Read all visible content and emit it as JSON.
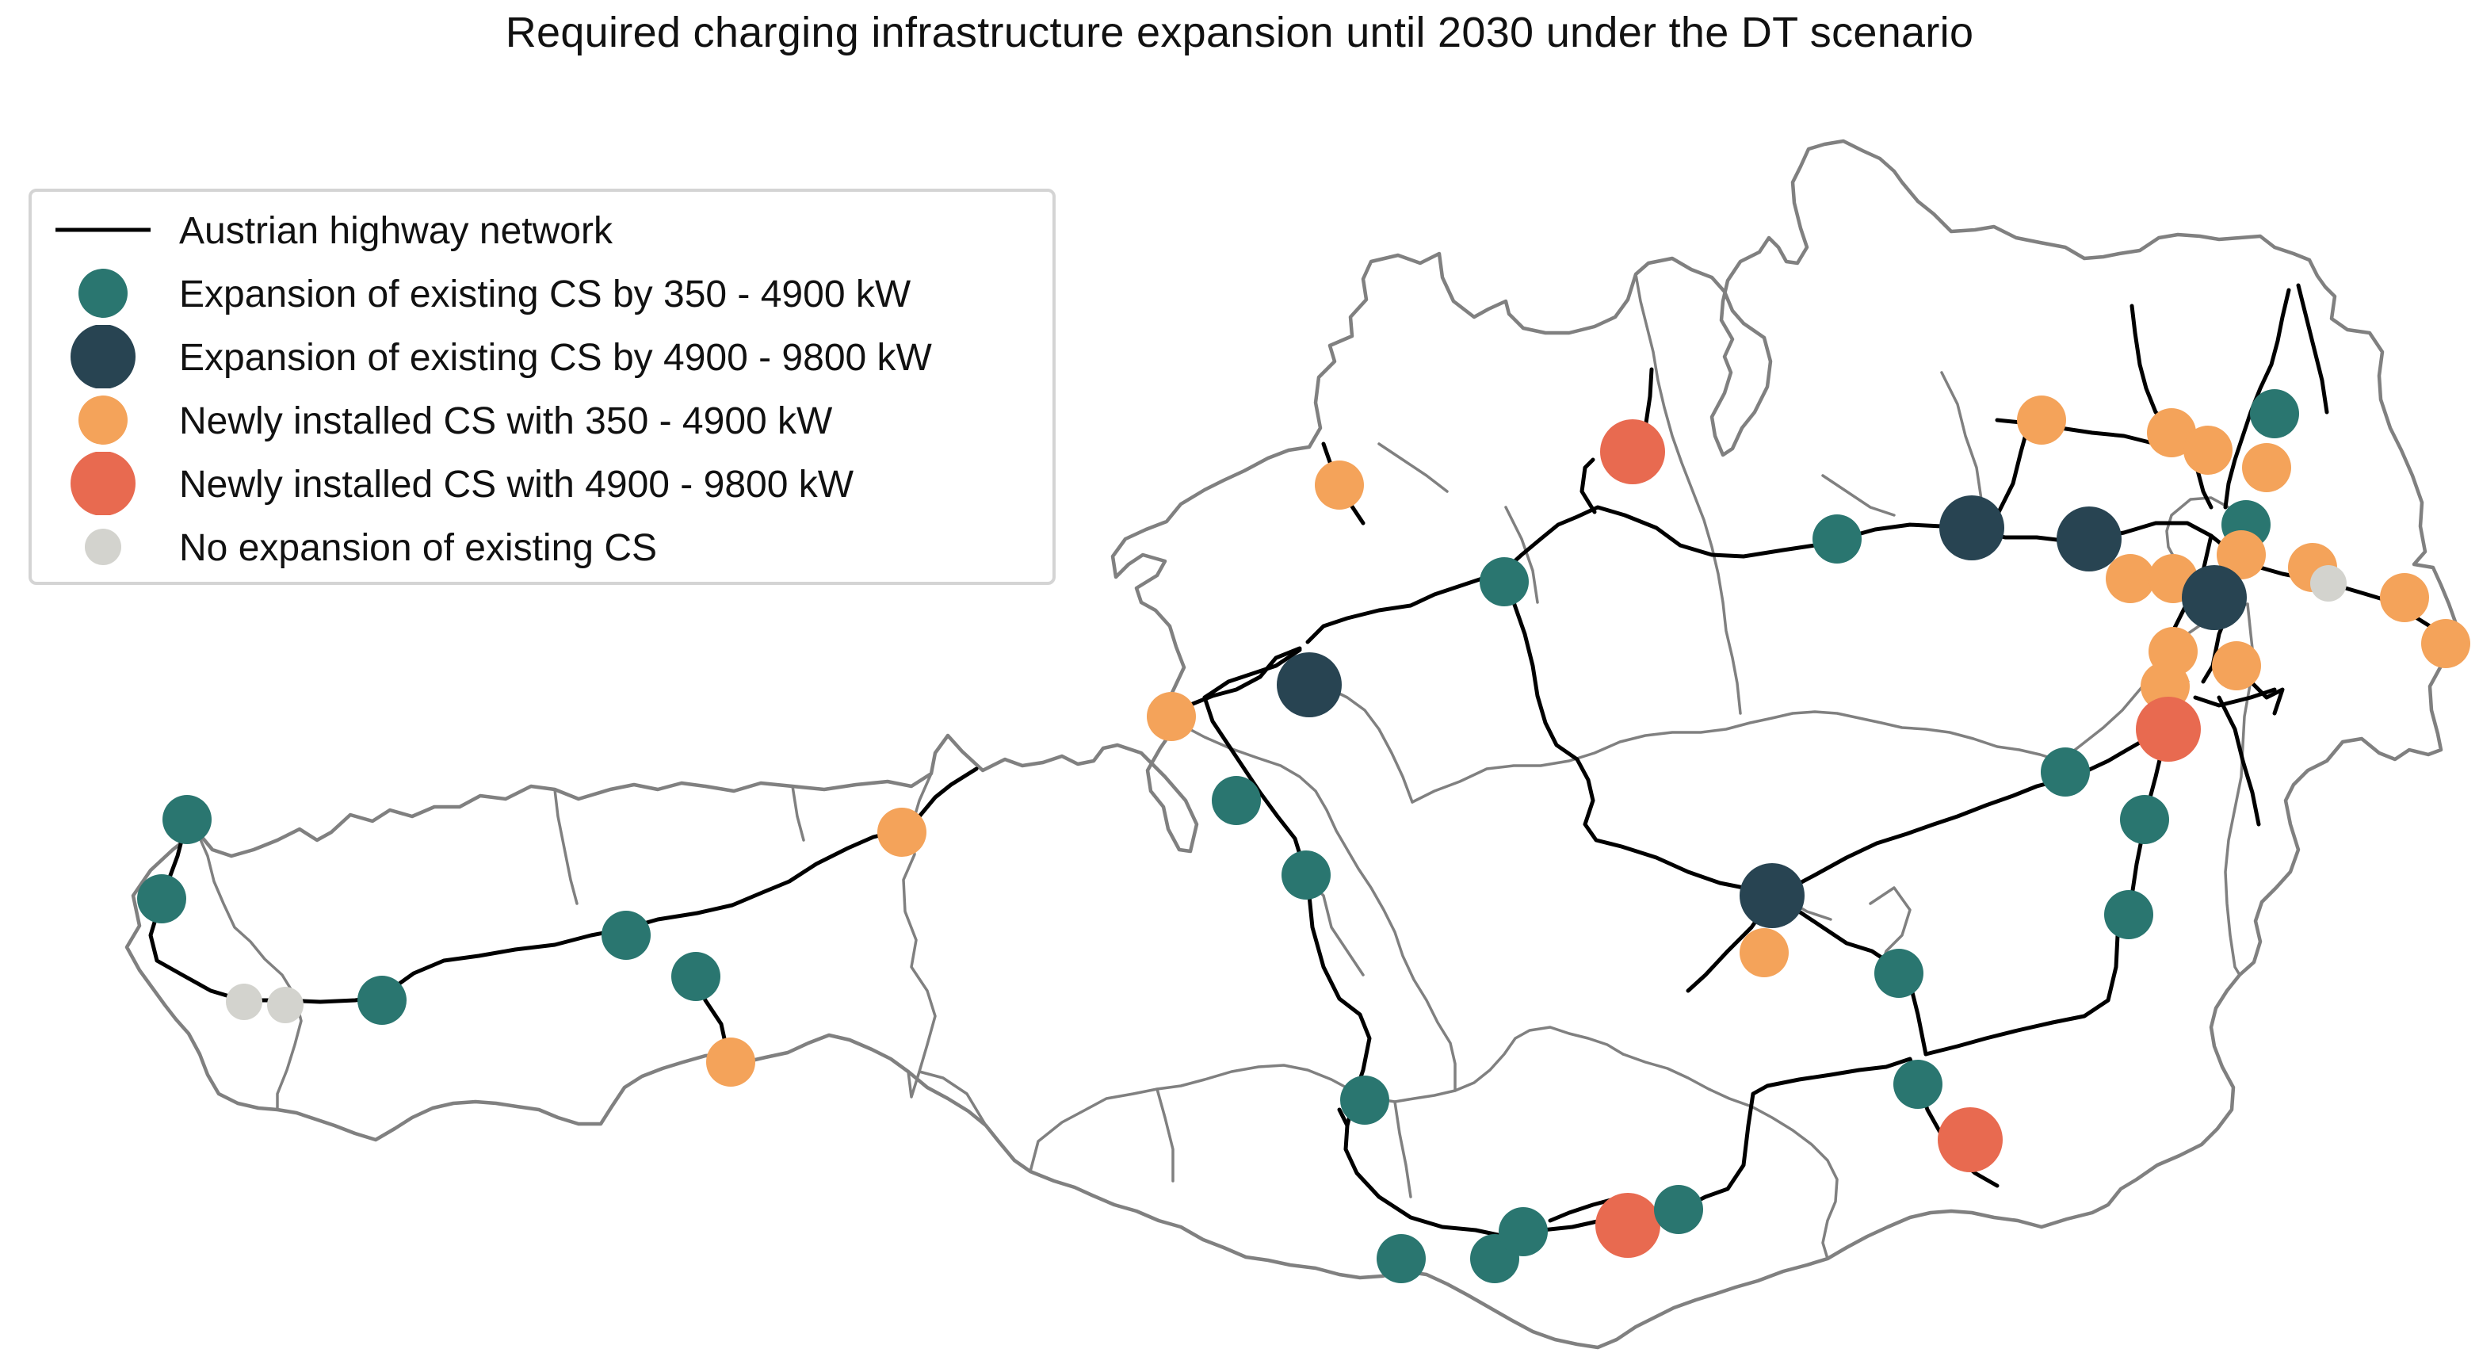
{
  "title": "Required charging infrastructure expansion until 2030 under the DT scenario",
  "legend": {
    "placement": "top-left",
    "items": [
      {
        "key": "highway",
        "label": "Austrian highway network",
        "symbol": "line",
        "color": "#000000"
      },
      {
        "key": "exp_small",
        "label": "Expansion of existing CS by 350 - 4900 kW",
        "symbol": "circle-small",
        "color": "#2a7670"
      },
      {
        "key": "exp_large",
        "label": "Expansion of existing CS by 4900 - 9800 kW",
        "symbol": "circle-large",
        "color": "#284452"
      },
      {
        "key": "new_small",
        "label": "Newly installed CS with 350 - 4900 kW",
        "symbol": "circle-small",
        "color": "#f4a35a"
      },
      {
        "key": "new_large",
        "label": "Newly installed CS with 4900 - 9800 kW",
        "symbol": "circle-large",
        "color": "#e86a50"
      },
      {
        "key": "none",
        "label": "No expansion of existing CS",
        "symbol": "circle-tiny",
        "color": "#d3d3ce"
      }
    ]
  },
  "colors": {
    "border": "#808080",
    "highway": "#000000",
    "exp_small": "#2a7670",
    "exp_large": "#284452",
    "new_small": "#f4a35a",
    "new_large": "#e86a50",
    "none": "#d3d3ce"
  },
  "stations_by_category": {
    "exp_small": 23,
    "exp_large": 5,
    "new_small": 21,
    "new_large": 4,
    "none": 3
  }
}
